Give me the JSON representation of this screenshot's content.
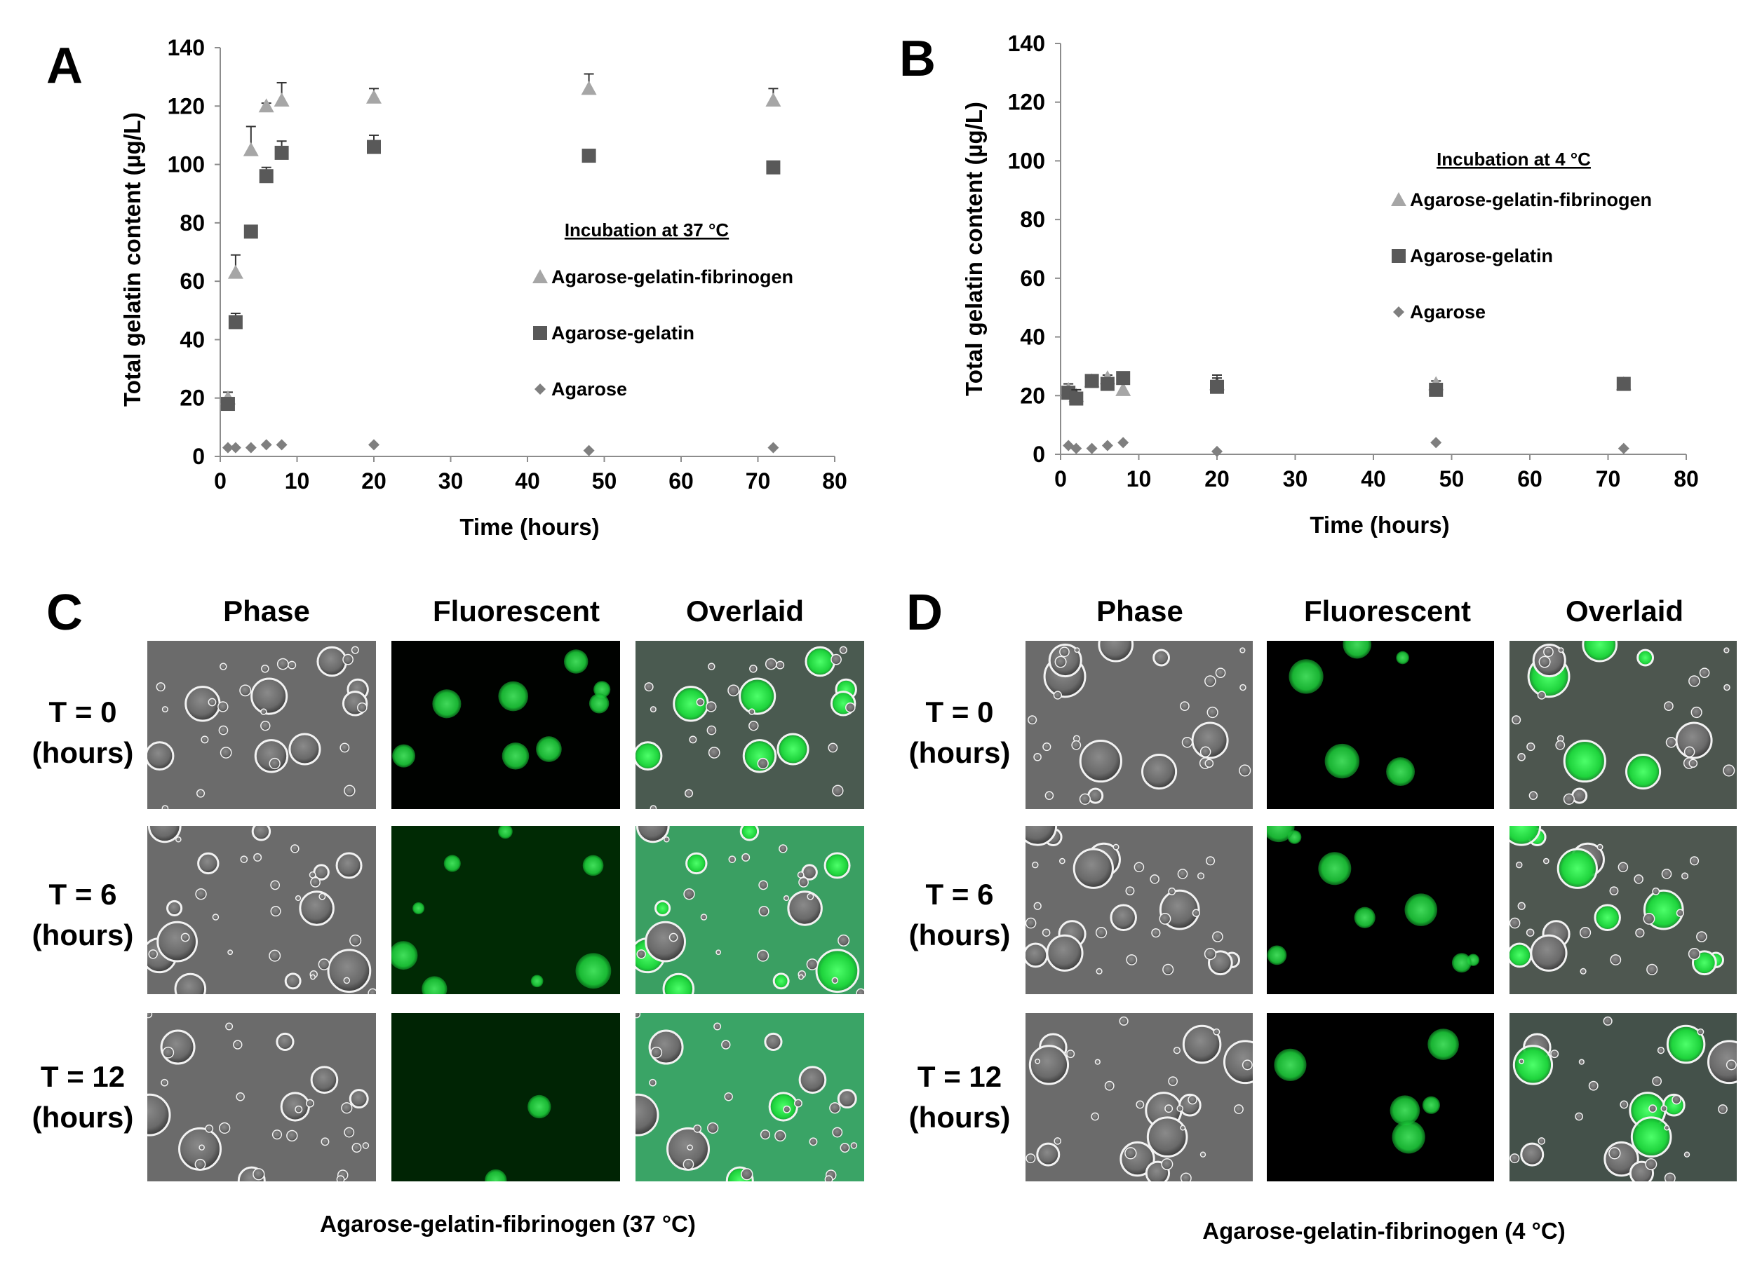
{
  "chart_data": [
    {
      "type": "scatter",
      "panel": "A",
      "xlabel": "Time (hours)",
      "ylabel": "Total gelatin content (µg/L)",
      "xlim": [
        0,
        80
      ],
      "ylim": [
        0,
        140
      ],
      "xticks": [
        "0",
        "10",
        "20",
        "30",
        "40",
        "50",
        "60",
        "70",
        "80"
      ],
      "yticks": [
        "0",
        "20",
        "40",
        "60",
        "80",
        "100",
        "120",
        "140"
      ],
      "legend_title": "Incubation at 37 °C",
      "legend_position": "center-right",
      "grid": false,
      "series": [
        {
          "name": "Agarose-gelatin-fibrinogen",
          "marker": "triangle",
          "color": "#a6a6a6",
          "x": [
            1,
            2,
            4,
            6,
            8,
            20,
            48,
            72
          ],
          "y": [
            20,
            63,
            105,
            120,
            122,
            123,
            126,
            122
          ],
          "err": [
            2,
            6,
            8,
            1,
            6,
            3,
            5,
            4
          ]
        },
        {
          "name": "Agarose-gelatin",
          "marker": "square",
          "color": "#595959",
          "x": [
            1,
            2,
            4,
            6,
            8,
            20,
            48,
            72
          ],
          "y": [
            18,
            46,
            77,
            96,
            104,
            106,
            103,
            99
          ],
          "err": [
            2,
            3,
            2,
            3,
            4,
            4,
            1,
            1
          ]
        },
        {
          "name": "Agarose",
          "marker": "diamond",
          "color": "#7f7f7f",
          "x": [
            1,
            2,
            4,
            6,
            8,
            20,
            48,
            72
          ],
          "y": [
            3,
            3,
            3,
            4,
            4,
            4,
            2,
            3
          ],
          "err": [
            0,
            0,
            0,
            0,
            0,
            0,
            0,
            0
          ]
        }
      ]
    },
    {
      "type": "scatter",
      "panel": "B",
      "xlabel": "Time (hours)",
      "ylabel": "Total gelatin content (µg/L)",
      "xlim": [
        0,
        80
      ],
      "ylim": [
        0,
        140
      ],
      "xticks": [
        "0",
        "10",
        "20",
        "30",
        "40",
        "50",
        "60",
        "70",
        "80"
      ],
      "yticks": [
        "0",
        "20",
        "40",
        "60",
        "80",
        "100",
        "120",
        "140"
      ],
      "legend_title": "Incubation at 4 °C",
      "legend_position": "top-right",
      "grid": false,
      "series": [
        {
          "name": "Agarose-gelatin-fibrinogen",
          "marker": "triangle",
          "color": "#a6a6a6",
          "x": [
            1,
            2,
            4,
            6,
            8,
            20,
            48,
            72
          ],
          "y": [
            22,
            20,
            25,
            26,
            22,
            24,
            24,
            24
          ],
          "err": [
            2,
            2,
            1,
            1,
            2,
            3,
            1,
            1
          ]
        },
        {
          "name": "Agarose-gelatin",
          "marker": "square",
          "color": "#595959",
          "x": [
            1,
            2,
            4,
            6,
            8,
            20,
            48,
            72
          ],
          "y": [
            21,
            19,
            25,
            24,
            26,
            23,
            22,
            24
          ],
          "err": [
            2,
            3,
            1,
            2,
            2,
            3,
            2,
            1
          ]
        },
        {
          "name": "Agarose",
          "marker": "diamond",
          "color": "#7f7f7f",
          "x": [
            1,
            2,
            4,
            6,
            8,
            20,
            48,
            72
          ],
          "y": [
            3,
            2,
            2,
            3,
            4,
            1,
            4,
            2
          ],
          "err": [
            0,
            0,
            0,
            0,
            0,
            0,
            0,
            0
          ]
        }
      ]
    }
  ],
  "micrographs": [
    {
      "panel": "C",
      "columns": [
        "Phase",
        "Fluorescent",
        "Overlaid"
      ],
      "rows": [
        {
          "line1": "T = 0",
          "line2": "(hours)"
        },
        {
          "line1": "T = 6",
          "line2": "(hours)"
        },
        {
          "line1": "T = 12",
          "line2": "(hours)"
        }
      ],
      "caption": "Agarose-gelatin-fibrinogen (37 °C)"
    },
    {
      "panel": "D",
      "columns": [
        "Phase",
        "Fluorescent",
        "Overlaid"
      ],
      "rows": [
        {
          "line1": "T = 0",
          "line2": "(hours)"
        },
        {
          "line1": "T = 6",
          "line2": "(hours)"
        },
        {
          "line1": "T = 12",
          "line2": "(hours)"
        }
      ],
      "caption": "Agarose-gelatin-fibrinogen (4 °C)"
    }
  ]
}
